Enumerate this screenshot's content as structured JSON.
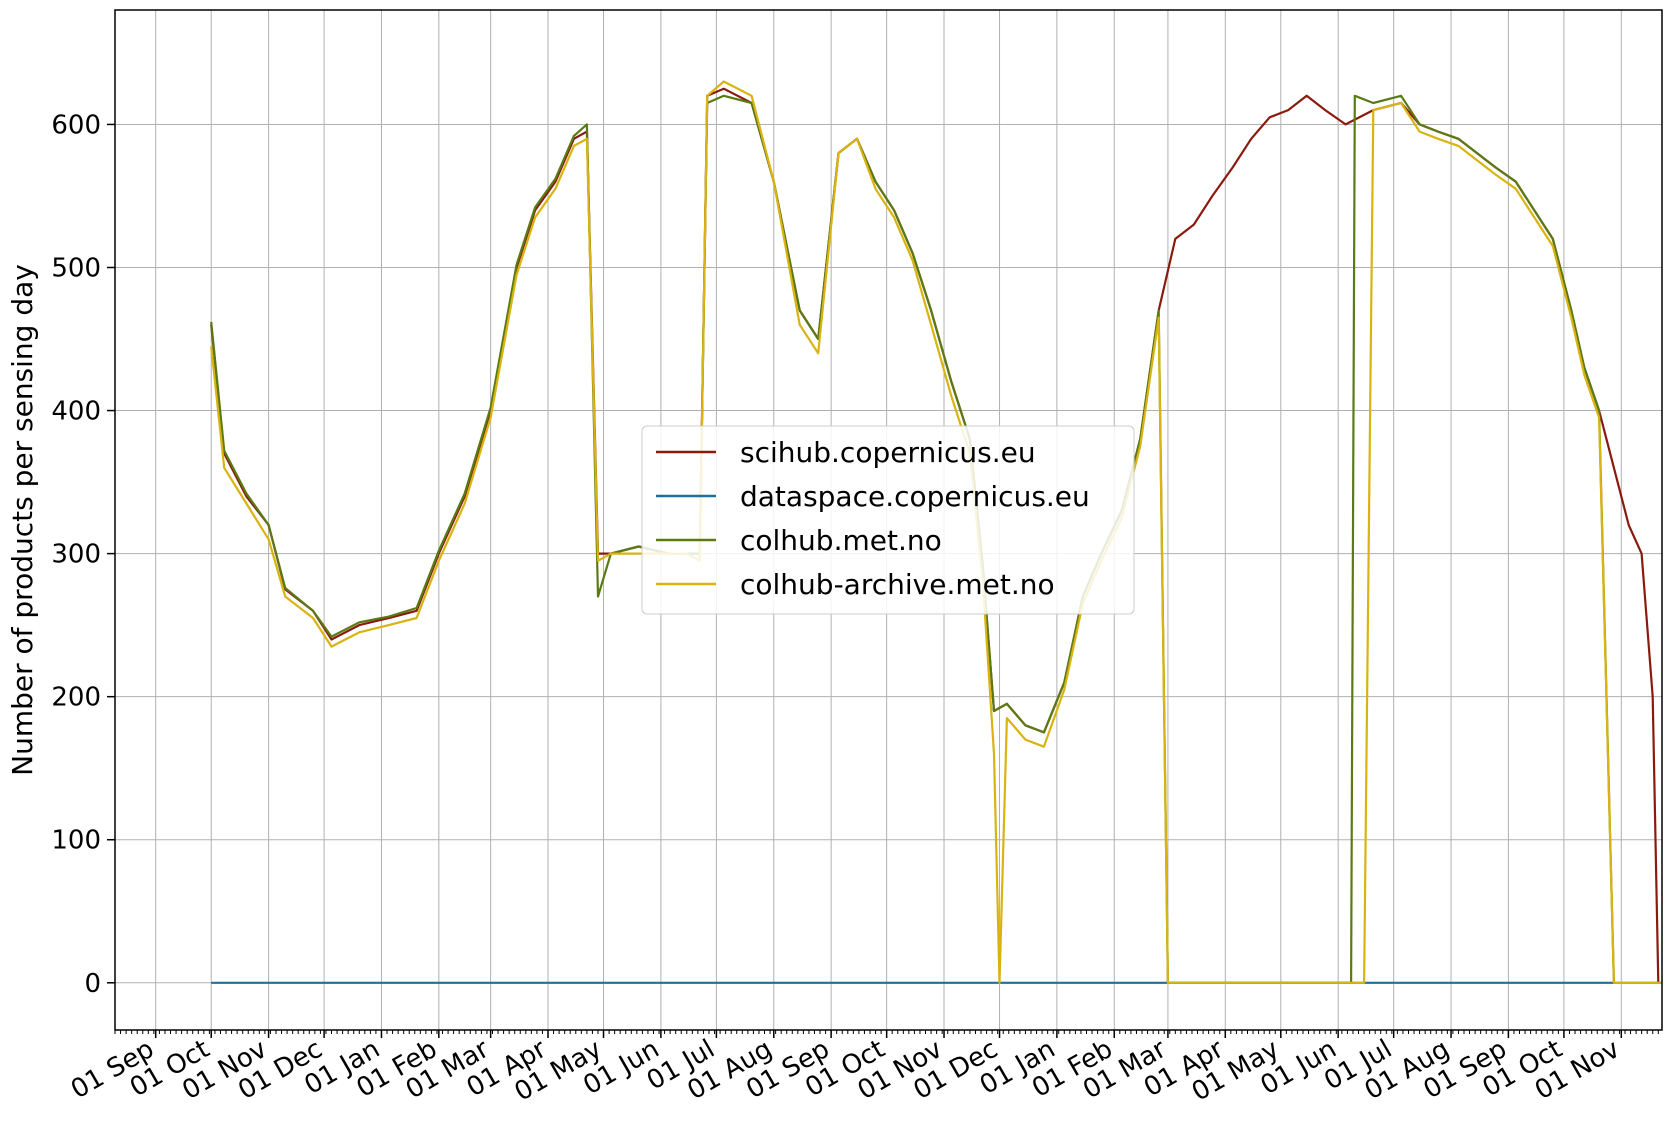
{
  "chart_data": {
    "type": "line",
    "title": "",
    "xlabel": "",
    "ylabel": "Number of products per sensing day",
    "xlim": [
      "2022-08-10",
      "2024-11-23"
    ],
    "ylim": [
      -33,
      680
    ],
    "yticks": [
      0,
      100,
      200,
      300,
      400,
      500,
      600
    ],
    "xticks": [
      {
        "date": "2022-09-01",
        "label": "01 Sep"
      },
      {
        "date": "2022-10-01",
        "label": "01 Oct"
      },
      {
        "date": "2022-11-01",
        "label": "01 Nov"
      },
      {
        "date": "2022-12-01",
        "label": "01 Dec"
      },
      {
        "date": "2023-01-01",
        "label": "01 Jan"
      },
      {
        "date": "2023-02-01",
        "label": "01 Feb"
      },
      {
        "date": "2023-03-01",
        "label": "01 Mar"
      },
      {
        "date": "2023-04-01",
        "label": "01 Apr"
      },
      {
        "date": "2023-05-01",
        "label": "01 May"
      },
      {
        "date": "2023-06-01",
        "label": "01 Jun"
      },
      {
        "date": "2023-07-01",
        "label": "01 Jul"
      },
      {
        "date": "2023-08-01",
        "label": "01 Aug"
      },
      {
        "date": "2023-09-01",
        "label": "01 Sep"
      },
      {
        "date": "2023-10-01",
        "label": "01 Oct"
      },
      {
        "date": "2023-11-01",
        "label": "01 Nov"
      },
      {
        "date": "2023-12-01",
        "label": "01 Dec"
      },
      {
        "date": "2024-01-01",
        "label": "01 Jan"
      },
      {
        "date": "2024-02-01",
        "label": "01 Feb"
      },
      {
        "date": "2024-03-01",
        "label": "01 Mar"
      },
      {
        "date": "2024-04-01",
        "label": "01 Apr"
      },
      {
        "date": "2024-05-01",
        "label": "01 May"
      },
      {
        "date": "2024-06-01",
        "label": "01 Jun"
      },
      {
        "date": "2024-07-01",
        "label": "01 Jul"
      },
      {
        "date": "2024-08-01",
        "label": "01 Aug"
      },
      {
        "date": "2024-09-01",
        "label": "01 Sep"
      },
      {
        "date": "2024-10-01",
        "label": "01 Oct"
      },
      {
        "date": "2024-11-01",
        "label": "01 Nov"
      }
    ],
    "grid": true,
    "legend_position": "center",
    "series": [
      {
        "name": "scihub.copernicus.eu",
        "color": "#8b1a0e",
        "points": [
          [
            "2022-10-01",
            460
          ],
          [
            "2022-10-08",
            370
          ],
          [
            "2022-10-20",
            340
          ],
          [
            "2022-11-01",
            320
          ],
          [
            "2022-11-10",
            275
          ],
          [
            "2022-11-25",
            260
          ],
          [
            "2022-12-05",
            240
          ],
          [
            "2022-12-20",
            250
          ],
          [
            "2023-01-05",
            255
          ],
          [
            "2023-01-20",
            260
          ],
          [
            "2023-02-01",
            300
          ],
          [
            "2023-02-15",
            340
          ],
          [
            "2023-03-01",
            400
          ],
          [
            "2023-03-15",
            500
          ],
          [
            "2023-03-25",
            540
          ],
          [
            "2023-04-05",
            560
          ],
          [
            "2023-04-15",
            590
          ],
          [
            "2023-04-22",
            595
          ],
          [
            "2023-04-28",
            300
          ],
          [
            "2023-05-05",
            300
          ],
          [
            "2023-05-20",
            305
          ],
          [
            "2023-06-05",
            300
          ],
          [
            "2023-06-15",
            300
          ],
          [
            "2023-06-22",
            300
          ],
          [
            "2023-06-26",
            620
          ],
          [
            "2023-07-05",
            625
          ],
          [
            "2023-07-20",
            615
          ],
          [
            "2023-08-01",
            560
          ],
          [
            "2023-08-15",
            470
          ],
          [
            "2023-08-25",
            450
          ],
          [
            "2023-09-05",
            580
          ],
          [
            "2023-09-15",
            590
          ],
          [
            "2023-09-25",
            560
          ],
          [
            "2023-10-05",
            540
          ],
          [
            "2023-10-15",
            510
          ],
          [
            "2023-10-25",
            470
          ],
          [
            "2023-11-05",
            420
          ],
          [
            "2023-11-15",
            380
          ],
          [
            "2023-11-22",
            290
          ],
          [
            "2023-11-28",
            190
          ],
          [
            "2023-12-05",
            195
          ],
          [
            "2023-12-15",
            180
          ],
          [
            "2023-12-25",
            175
          ],
          [
            "2024-01-05",
            210
          ],
          [
            "2024-01-15",
            270
          ],
          [
            "2024-01-25",
            300
          ],
          [
            "2024-02-05",
            330
          ],
          [
            "2024-02-15",
            380
          ],
          [
            "2024-02-25",
            470
          ],
          [
            "2024-03-05",
            520
          ],
          [
            "2024-03-15",
            530
          ],
          [
            "2024-03-25",
            550
          ],
          [
            "2024-04-05",
            570
          ],
          [
            "2024-04-15",
            590
          ],
          [
            "2024-04-25",
            605
          ],
          [
            "2024-05-05",
            610
          ],
          [
            "2024-05-15",
            620
          ],
          [
            "2024-05-25",
            610
          ],
          [
            "2024-06-05",
            600
          ],
          [
            "2024-06-20",
            610
          ],
          [
            "2024-07-05",
            615
          ],
          [
            "2024-07-15",
            600
          ],
          [
            "2024-07-25",
            595
          ],
          [
            "2024-08-05",
            590
          ],
          [
            "2024-08-15",
            580
          ],
          [
            "2024-08-25",
            570
          ],
          [
            "2024-09-05",
            560
          ],
          [
            "2024-09-15",
            540
          ],
          [
            "2024-09-25",
            520
          ],
          [
            "2024-10-05",
            470
          ],
          [
            "2024-10-12",
            430
          ],
          [
            "2024-10-20",
            400
          ],
          [
            "2024-10-28",
            360
          ],
          [
            "2024-11-05",
            320
          ],
          [
            "2024-11-12",
            300
          ],
          [
            "2024-11-18",
            200
          ],
          [
            "2024-11-21",
            0
          ]
        ]
      },
      {
        "name": "dataspace.copernicus.eu",
        "color": "#1f6f9a",
        "points": [
          [
            "2022-10-01",
            0
          ],
          [
            "2024-10-29",
            0
          ]
        ]
      },
      {
        "name": "colhub.met.no",
        "color": "#5a7a14",
        "points": [
          [
            "2022-10-01",
            462
          ],
          [
            "2022-10-08",
            372
          ],
          [
            "2022-10-20",
            342
          ],
          [
            "2022-11-01",
            320
          ],
          [
            "2022-11-10",
            276
          ],
          [
            "2022-11-25",
            260
          ],
          [
            "2022-12-05",
            242
          ],
          [
            "2022-12-20",
            252
          ],
          [
            "2023-01-05",
            256
          ],
          [
            "2023-01-20",
            262
          ],
          [
            "2023-02-01",
            302
          ],
          [
            "2023-02-15",
            342
          ],
          [
            "2023-03-01",
            402
          ],
          [
            "2023-03-15",
            502
          ],
          [
            "2023-03-25",
            542
          ],
          [
            "2023-04-05",
            562
          ],
          [
            "2023-04-15",
            592
          ],
          [
            "2023-04-22",
            600
          ],
          [
            "2023-04-28",
            270
          ],
          [
            "2023-05-05",
            300
          ],
          [
            "2023-05-20",
            305
          ],
          [
            "2023-06-05",
            300
          ],
          [
            "2023-06-15",
            300
          ],
          [
            "2023-06-22",
            300
          ],
          [
            "2023-06-26",
            615
          ],
          [
            "2023-07-05",
            620
          ],
          [
            "2023-07-20",
            615
          ],
          [
            "2023-08-01",
            560
          ],
          [
            "2023-08-15",
            470
          ],
          [
            "2023-08-25",
            450
          ],
          [
            "2023-09-05",
            580
          ],
          [
            "2023-09-15",
            590
          ],
          [
            "2023-09-25",
            560
          ],
          [
            "2023-10-05",
            540
          ],
          [
            "2023-10-15",
            510
          ],
          [
            "2023-10-25",
            470
          ],
          [
            "2023-11-05",
            420
          ],
          [
            "2023-11-15",
            380
          ],
          [
            "2023-11-22",
            290
          ],
          [
            "2023-11-28",
            190
          ],
          [
            "2023-12-05",
            195
          ],
          [
            "2023-12-15",
            180
          ],
          [
            "2023-12-25",
            175
          ],
          [
            "2024-01-05",
            210
          ],
          [
            "2024-01-15",
            270
          ],
          [
            "2024-01-25",
            300
          ],
          [
            "2024-02-05",
            330
          ],
          [
            "2024-02-15",
            380
          ],
          [
            "2024-02-25",
            470
          ],
          [
            "2024-03-01",
            0
          ],
          [
            "2024-03-10",
            0
          ],
          [
            "2024-04-05",
            0
          ],
          [
            "2024-05-05",
            0
          ],
          [
            "2024-06-08",
            0
          ],
          [
            "2024-06-10",
            620
          ],
          [
            "2024-06-20",
            615
          ],
          [
            "2024-07-05",
            620
          ],
          [
            "2024-07-15",
            600
          ],
          [
            "2024-07-25",
            595
          ],
          [
            "2024-08-05",
            590
          ],
          [
            "2024-08-15",
            580
          ],
          [
            "2024-08-25",
            570
          ],
          [
            "2024-09-05",
            560
          ],
          [
            "2024-09-15",
            540
          ],
          [
            "2024-09-25",
            520
          ],
          [
            "2024-10-05",
            470
          ],
          [
            "2024-10-12",
            430
          ],
          [
            "2024-10-20",
            400
          ],
          [
            "2024-10-28",
            0
          ],
          [
            "2024-11-10",
            0
          ],
          [
            "2024-11-23",
            0
          ]
        ]
      },
      {
        "name": "colhub-archive.met.no",
        "color": "#d9b310",
        "points": [
          [
            "2022-10-01",
            445
          ],
          [
            "2022-10-08",
            360
          ],
          [
            "2022-10-20",
            335
          ],
          [
            "2022-11-01",
            310
          ],
          [
            "2022-11-10",
            270
          ],
          [
            "2022-11-25",
            255
          ],
          [
            "2022-12-05",
            235
          ],
          [
            "2022-12-20",
            245
          ],
          [
            "2023-01-05",
            250
          ],
          [
            "2023-01-20",
            255
          ],
          [
            "2023-02-01",
            295
          ],
          [
            "2023-02-15",
            335
          ],
          [
            "2023-03-01",
            395
          ],
          [
            "2023-03-15",
            495
          ],
          [
            "2023-03-25",
            535
          ],
          [
            "2023-04-05",
            555
          ],
          [
            "2023-04-15",
            585
          ],
          [
            "2023-04-22",
            590
          ],
          [
            "2023-04-28",
            295
          ],
          [
            "2023-05-05",
            300
          ],
          [
            "2023-05-20",
            300
          ],
          [
            "2023-06-05",
            300
          ],
          [
            "2023-06-15",
            300
          ],
          [
            "2023-06-22",
            295
          ],
          [
            "2023-06-26",
            620
          ],
          [
            "2023-07-05",
            630
          ],
          [
            "2023-07-20",
            620
          ],
          [
            "2023-08-01",
            560
          ],
          [
            "2023-08-15",
            460
          ],
          [
            "2023-08-25",
            440
          ],
          [
            "2023-09-05",
            580
          ],
          [
            "2023-09-15",
            590
          ],
          [
            "2023-09-25",
            555
          ],
          [
            "2023-10-05",
            535
          ],
          [
            "2023-10-15",
            505
          ],
          [
            "2023-10-25",
            460
          ],
          [
            "2023-11-05",
            410
          ],
          [
            "2023-11-15",
            370
          ],
          [
            "2023-11-22",
            280
          ],
          [
            "2023-11-28",
            160
          ],
          [
            "2023-12-01",
            0
          ],
          [
            "2023-12-05",
            185
          ],
          [
            "2023-12-15",
            170
          ],
          [
            "2023-12-25",
            165
          ],
          [
            "2024-01-05",
            205
          ],
          [
            "2024-01-15",
            265
          ],
          [
            "2024-01-25",
            295
          ],
          [
            "2024-02-05",
            325
          ],
          [
            "2024-02-15",
            375
          ],
          [
            "2024-02-25",
            465
          ],
          [
            "2024-03-01",
            0
          ],
          [
            "2024-03-10",
            0
          ],
          [
            "2024-04-05",
            0
          ],
          [
            "2024-05-05",
            0
          ],
          [
            "2024-06-10",
            0
          ],
          [
            "2024-06-15",
            0
          ],
          [
            "2024-06-20",
            610
          ],
          [
            "2024-07-05",
            615
          ],
          [
            "2024-07-15",
            595
          ],
          [
            "2024-07-25",
            590
          ],
          [
            "2024-08-05",
            585
          ],
          [
            "2024-08-15",
            575
          ],
          [
            "2024-08-25",
            565
          ],
          [
            "2024-09-05",
            555
          ],
          [
            "2024-09-15",
            535
          ],
          [
            "2024-09-25",
            515
          ],
          [
            "2024-10-05",
            465
          ],
          [
            "2024-10-12",
            425
          ],
          [
            "2024-10-20",
            395
          ],
          [
            "2024-10-28",
            0
          ],
          [
            "2024-11-10",
            0
          ],
          [
            "2024-11-23",
            0
          ]
        ]
      }
    ]
  }
}
